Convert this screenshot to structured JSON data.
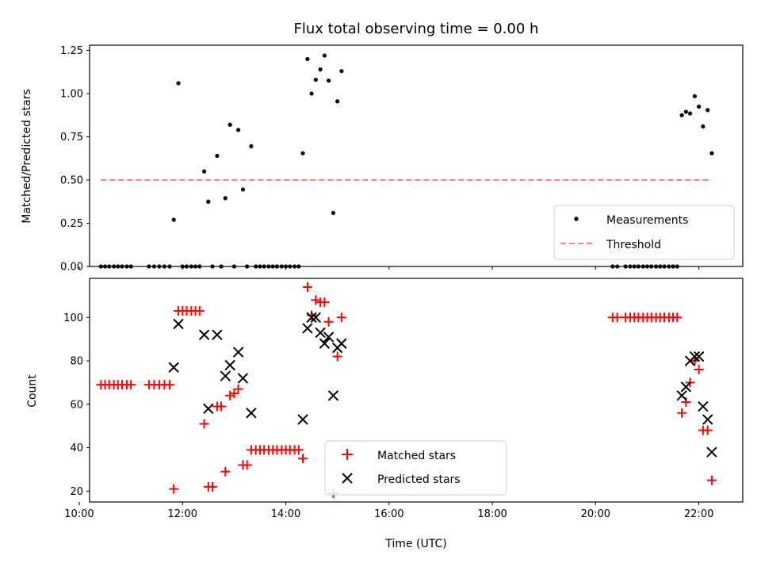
{
  "chart_data": [
    {
      "type": "scatter",
      "title": "Flux total observing time = 0.00 h",
      "xlabel": "",
      "ylabel": "Matched/Predicted stars",
      "xlim": [
        10.2,
        22.85
      ],
      "ylim": [
        0.0,
        1.28
      ],
      "yticks": [
        0.0,
        0.25,
        0.5,
        0.75,
        1.0,
        1.25
      ],
      "ytick_labels": [
        "0.00",
        "0.25",
        "0.50",
        "0.75",
        "1.00",
        "1.25"
      ],
      "grid": false,
      "legend_position": "lower-right",
      "series": [
        {
          "name": "Measurements",
          "kind": "scatter",
          "color": "#000000",
          "marker": "dot",
          "points": [
            [
              10.42,
              0
            ],
            [
              10.5,
              0
            ],
            [
              10.58,
              0
            ],
            [
              10.67,
              0
            ],
            [
              10.75,
              0
            ],
            [
              10.83,
              0
            ],
            [
              10.92,
              0
            ],
            [
              11.0,
              0
            ],
            [
              11.35,
              0
            ],
            [
              11.45,
              0
            ],
            [
              11.55,
              0
            ],
            [
              11.65,
              0
            ],
            [
              11.75,
              0
            ],
            [
              11.83,
              0.27
            ],
            [
              11.92,
              1.06
            ],
            [
              12.0,
              0
            ],
            [
              12.08,
              0
            ],
            [
              12.17,
              0
            ],
            [
              12.25,
              0
            ],
            [
              12.33,
              0
            ],
            [
              12.42,
              0.55
            ],
            [
              12.5,
              0.375
            ],
            [
              12.58,
              0
            ],
            [
              12.67,
              0.64
            ],
            [
              12.75,
              0
            ],
            [
              12.83,
              0.395
            ],
            [
              12.92,
              0.82
            ],
            [
              13.0,
              0
            ],
            [
              13.08,
              0.79
            ],
            [
              13.17,
              0.445
            ],
            [
              13.25,
              0
            ],
            [
              13.33,
              0.695
            ],
            [
              13.42,
              0
            ],
            [
              13.5,
              0
            ],
            [
              13.58,
              0
            ],
            [
              13.67,
              0
            ],
            [
              13.75,
              0
            ],
            [
              13.83,
              0
            ],
            [
              13.92,
              0
            ],
            [
              14.0,
              0
            ],
            [
              14.08,
              0
            ],
            [
              14.17,
              0
            ],
            [
              14.25,
              0
            ],
            [
              14.33,
              0.655
            ],
            [
              14.42,
              1.2
            ],
            [
              14.5,
              1.0
            ],
            [
              14.58,
              1.08
            ],
            [
              14.67,
              1.14
            ],
            [
              14.75,
              1.22
            ],
            [
              14.83,
              1.075
            ],
            [
              14.92,
              0.31
            ],
            [
              15.0,
              0.955
            ],
            [
              15.08,
              1.13
            ],
            [
              20.33,
              0
            ],
            [
              20.42,
              0
            ],
            [
              20.58,
              0
            ],
            [
              20.67,
              0
            ],
            [
              20.75,
              0
            ],
            [
              20.83,
              0
            ],
            [
              20.92,
              0
            ],
            [
              21.0,
              0
            ],
            [
              21.08,
              0
            ],
            [
              21.17,
              0
            ],
            [
              21.25,
              0
            ],
            [
              21.33,
              0
            ],
            [
              21.42,
              0
            ],
            [
              21.5,
              0
            ],
            [
              21.58,
              0
            ],
            [
              21.67,
              0.875
            ],
            [
              21.75,
              0.895
            ],
            [
              21.83,
              0.885
            ],
            [
              21.92,
              0.985
            ],
            [
              22.0,
              0.925
            ],
            [
              22.08,
              0.81
            ],
            [
              22.17,
              0.905
            ],
            [
              22.25,
              0.655
            ]
          ]
        },
        {
          "name": "Threshold",
          "kind": "line",
          "color": "#ff7f7f",
          "dash": true,
          "points": [
            [
              10.42,
              0.5
            ],
            [
              22.25,
              0.5
            ]
          ]
        }
      ]
    },
    {
      "type": "scatter",
      "title": "",
      "xlabel": "Time (UTC)",
      "ylabel": "Count",
      "xlim": [
        10.2,
        22.85
      ],
      "ylim": [
        15.0,
        118.0
      ],
      "xticks": [
        10,
        12,
        14,
        16,
        18,
        20,
        22
      ],
      "xtick_labels": [
        "10:00",
        "12:00",
        "14:00",
        "16:00",
        "18:00",
        "20:00",
        "22:00"
      ],
      "yticks": [
        20,
        40,
        60,
        80,
        100
      ],
      "ytick_labels": [
        "20",
        "40",
        "60",
        "80",
        "100"
      ],
      "grid": false,
      "legend_position": "lower-center",
      "series": [
        {
          "name": "Matched stars",
          "kind": "scatter",
          "color": "#ff0000",
          "marker": "plus",
          "points": [
            [
              10.42,
              69
            ],
            [
              10.5,
              69
            ],
            [
              10.58,
              69
            ],
            [
              10.67,
              69
            ],
            [
              10.75,
              69
            ],
            [
              10.83,
              69
            ],
            [
              10.92,
              69
            ],
            [
              11.0,
              69
            ],
            [
              11.35,
              69
            ],
            [
              11.45,
              69
            ],
            [
              11.55,
              69
            ],
            [
              11.65,
              69
            ],
            [
              11.75,
              69
            ],
            [
              11.83,
              21
            ],
            [
              11.92,
              103
            ],
            [
              12.0,
              103
            ],
            [
              12.08,
              103
            ],
            [
              12.17,
              103
            ],
            [
              12.25,
              103
            ],
            [
              12.33,
              103
            ],
            [
              12.42,
              51
            ],
            [
              12.5,
              22
            ],
            [
              12.58,
              22
            ],
            [
              12.67,
              59
            ],
            [
              12.75,
              59
            ],
            [
              12.83,
              29
            ],
            [
              12.92,
              64
            ],
            [
              13.0,
              65
            ],
            [
              13.08,
              67
            ],
            [
              13.17,
              32
            ],
            [
              13.25,
              32
            ],
            [
              13.33,
              39
            ],
            [
              13.42,
              39
            ],
            [
              13.5,
              39
            ],
            [
              13.58,
              39
            ],
            [
              13.67,
              39
            ],
            [
              13.75,
              39
            ],
            [
              13.83,
              39
            ],
            [
              13.92,
              39
            ],
            [
              14.0,
              39
            ],
            [
              14.08,
              39
            ],
            [
              14.17,
              39
            ],
            [
              14.25,
              39
            ],
            [
              14.33,
              35
            ],
            [
              14.42,
              114
            ],
            [
              14.5,
              101
            ],
            [
              14.58,
              108
            ],
            [
              14.67,
              107
            ],
            [
              14.75,
              107
            ],
            [
              14.83,
              98
            ],
            [
              14.92,
              19
            ],
            [
              15.0,
              82
            ],
            [
              15.08,
              100
            ],
            [
              20.33,
              100
            ],
            [
              20.42,
              100
            ],
            [
              20.58,
              100
            ],
            [
              20.67,
              100
            ],
            [
              20.75,
              100
            ],
            [
              20.83,
              100
            ],
            [
              20.92,
              100
            ],
            [
              21.0,
              100
            ],
            [
              21.08,
              100
            ],
            [
              21.17,
              100
            ],
            [
              21.25,
              100
            ],
            [
              21.33,
              100
            ],
            [
              21.42,
              100
            ],
            [
              21.5,
              100
            ],
            [
              21.58,
              100
            ],
            [
              21.67,
              56
            ],
            [
              21.75,
              61
            ],
            [
              21.83,
              70
            ],
            [
              21.92,
              80
            ],
            [
              22.0,
              76
            ],
            [
              22.08,
              48
            ],
            [
              22.17,
              48
            ],
            [
              22.25,
              25
            ]
          ]
        },
        {
          "name": "Predicted stars",
          "kind": "scatter",
          "color": "#000000",
          "marker": "x",
          "points": [
            [
              11.83,
              77
            ],
            [
              11.92,
              97
            ],
            [
              12.42,
              92
            ],
            [
              12.5,
              58
            ],
            [
              12.67,
              92
            ],
            [
              12.83,
              73
            ],
            [
              12.92,
              78
            ],
            [
              13.08,
              84
            ],
            [
              13.17,
              72
            ],
            [
              13.33,
              56
            ],
            [
              14.33,
              53
            ],
            [
              14.42,
              95
            ],
            [
              14.5,
              100
            ],
            [
              14.58,
              100
            ],
            [
              14.67,
              93
            ],
            [
              14.75,
              88
            ],
            [
              14.83,
              91
            ],
            [
              14.92,
              64
            ],
            [
              15.0,
              86
            ],
            [
              15.08,
              88
            ],
            [
              21.67,
              64
            ],
            [
              21.75,
              68
            ],
            [
              21.83,
              80
            ],
            [
              21.92,
              82
            ],
            [
              22.0,
              82
            ],
            [
              22.08,
              59
            ],
            [
              22.17,
              53
            ],
            [
              22.25,
              38
            ]
          ]
        }
      ]
    }
  ]
}
